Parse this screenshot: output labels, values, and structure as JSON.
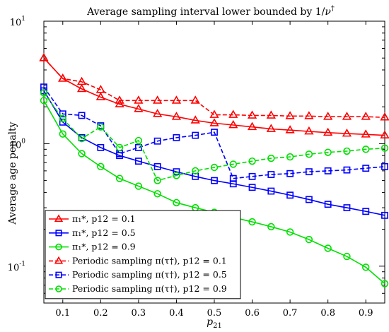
{
  "chart_data": {
    "type": "line",
    "title": "Average sampling interval lower bounded by 1/ν†",
    "xlabel": "p21",
    "ylabel": "Average age penalty",
    "yscale": "log",
    "xlim": [
      0.05,
      0.95
    ],
    "ylim": [
      0.05,
      10
    ],
    "grid": false,
    "legend_position": "bottom-left",
    "x_ticks": [
      0.1,
      0.2,
      0.3,
      0.4,
      0.5,
      0.6,
      0.7,
      0.8,
      0.9
    ],
    "x_tick_labels": [
      "0.1",
      "0.2",
      "0.3",
      "0.4",
      "0.5",
      "0.6",
      "0.7",
      "0.8",
      "0.9"
    ],
    "y_ticks": [
      0.1,
      1,
      10
    ],
    "y_tick_labels": [
      {
        "base": "10",
        "exp": "-1"
      },
      {
        "base": "10",
        "exp": "0"
      },
      {
        "base": "10",
        "exp": "1"
      }
    ],
    "x": [
      0.05,
      0.1,
      0.15,
      0.2,
      0.25,
      0.3,
      0.35,
      0.4,
      0.45,
      0.5,
      0.55,
      0.6,
      0.65,
      0.7,
      0.75,
      0.8,
      0.85,
      0.9,
      0.95
    ],
    "series": [
      {
        "name": "π₁*, p12 = 0.1",
        "color": "#ff0000",
        "marker": "triangle",
        "dash": "solid",
        "values": [
          5.0,
          3.4,
          2.8,
          2.4,
          2.1,
          1.92,
          1.75,
          1.66,
          1.55,
          1.47,
          1.42,
          1.37,
          1.32,
          1.29,
          1.26,
          1.23,
          1.21,
          1.19,
          1.17
        ]
      },
      {
        "name": "π₁*, p12 = 0.5",
        "color": "#0000ff",
        "marker": "square",
        "dash": "solid",
        "values": [
          2.7,
          1.5,
          1.12,
          0.93,
          0.8,
          0.72,
          0.65,
          0.59,
          0.54,
          0.5,
          0.47,
          0.44,
          0.41,
          0.38,
          0.35,
          0.32,
          0.3,
          0.28,
          0.26
        ]
      },
      {
        "name": "π₁*, p12 = 0.9",
        "color": "#00e000",
        "marker": "circle",
        "dash": "solid",
        "values": [
          2.25,
          1.2,
          0.83,
          0.65,
          0.52,
          0.45,
          0.39,
          0.33,
          0.3,
          0.275,
          0.25,
          0.23,
          0.21,
          0.19,
          0.165,
          0.14,
          0.12,
          0.098,
          0.072
        ]
      },
      {
        "name": "Periodic sampling π(τ†), p12 = 0.1",
        "color": "#ff0000",
        "marker": "triangle",
        "dash": "dashed",
        "values": [
          5.0,
          3.4,
          3.2,
          2.75,
          2.25,
          2.25,
          2.25,
          2.25,
          2.25,
          1.72,
          1.72,
          1.7,
          1.7,
          1.68,
          1.68,
          1.66,
          1.66,
          1.66,
          1.64
        ]
      },
      {
        "name": "Periodic sampling π(τ†), p12 = 0.5",
        "color": "#0000ff",
        "marker": "square",
        "dash": "dashed",
        "values": [
          2.9,
          1.75,
          1.7,
          1.4,
          0.83,
          0.93,
          1.05,
          1.12,
          1.17,
          1.24,
          0.52,
          0.54,
          0.56,
          0.57,
          0.59,
          0.6,
          0.61,
          0.63,
          0.65
        ]
      },
      {
        "name": "Periodic sampling π(τ†), p12 = 0.9",
        "color": "#00e000",
        "marker": "circle",
        "dash": "dashed",
        "values": [
          2.6,
          1.6,
          1.1,
          1.37,
          0.93,
          1.06,
          0.5,
          0.55,
          0.6,
          0.64,
          0.68,
          0.72,
          0.76,
          0.78,
          0.82,
          0.85,
          0.87,
          0.9,
          0.92
        ]
      }
    ]
  }
}
